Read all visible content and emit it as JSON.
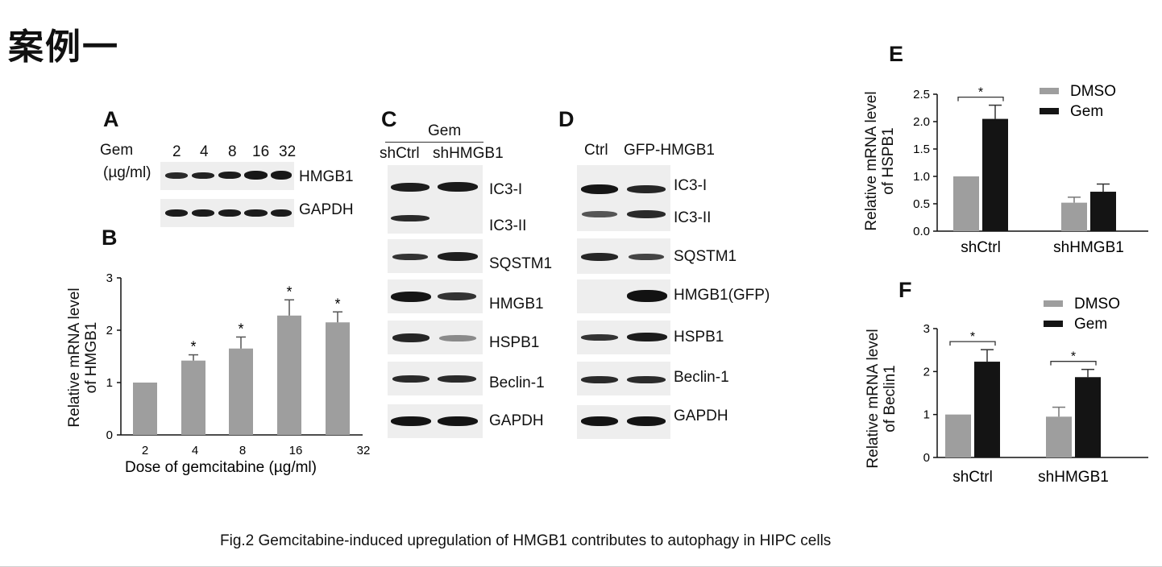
{
  "page": {
    "heading": "案例一",
    "caption": "Fig.2 Gemcitabine-induced upregulation of HMGB1 contributes to autophagy in HIPC cells"
  },
  "panel_a": {
    "letter": "A",
    "dose_label": "Gem",
    "dose_unit": "(µg/ml)",
    "doses": [
      "2",
      "4",
      "8",
      "16",
      "32"
    ],
    "rows": [
      "HMGB1",
      "GAPDH"
    ]
  },
  "panel_c": {
    "letter": "C",
    "group_label": "Gem",
    "lanes": [
      "shCtrl",
      "shHMGB1"
    ],
    "rows": [
      "IC3-I",
      "IC3-II",
      "SQSTM1",
      "HMGB1",
      "HSPB1",
      "Beclin-1",
      "GAPDH"
    ]
  },
  "panel_d": {
    "letter": "D",
    "lanes": [
      "Ctrl",
      "GFP-HMGB1"
    ],
    "rows": [
      "IC3-I",
      "IC3-II",
      "SQSTM1",
      "HMGB1(GFP)",
      "HSPB1",
      "Beclin-1",
      "GAPDH"
    ]
  },
  "colors": {
    "gray_bar": "#9e9e9e",
    "black_bar": "#141414",
    "band": "#1c1c1c"
  },
  "chart_data": [
    {
      "panel": "B",
      "type": "bar",
      "title": "",
      "xlabel": "Dose of gemcitabine (µg/ml)",
      "ylabel": "Relative mRNA level\nof HMGB1",
      "categories": [
        "2",
        "4",
        "8",
        "16",
        "32"
      ],
      "values": [
        1.0,
        1.42,
        1.65,
        2.28,
        2.15
      ],
      "errors": [
        0,
        0.11,
        0.22,
        0.3,
        0.2
      ],
      "significant": [
        false,
        true,
        true,
        true,
        true
      ],
      "sig_label": "*",
      "ylim": [
        0,
        3
      ],
      "yticks": [
        0,
        1,
        2,
        3
      ],
      "grid": false
    },
    {
      "panel": "E",
      "type": "bar",
      "title": "",
      "xlabel": "",
      "ylabel": "Relative mRNA level\nof HSPB1",
      "categories": [
        "shCtrl",
        "shHMGB1"
      ],
      "series": [
        {
          "name": "DMSO",
          "values": [
            1.0,
            0.52
          ],
          "errors": [
            0,
            0.1
          ]
        },
        {
          "name": "Gem",
          "values": [
            2.05,
            0.72
          ],
          "errors": [
            0.25,
            0.14
          ]
        }
      ],
      "significance": [
        {
          "category": "shCtrl",
          "label": "*"
        }
      ],
      "ylim": [
        0,
        2.5
      ],
      "yticks": [
        "0.0",
        "0.5",
        "1.0",
        "1.5",
        "2.0",
        "2.5"
      ],
      "legend": "top-right",
      "grid": false
    },
    {
      "panel": "F",
      "type": "bar",
      "title": "",
      "xlabel": "",
      "ylabel": "Relative mRNA level\nof Beclin1",
      "categories": [
        "shCtrl",
        "shHMGB1"
      ],
      "series": [
        {
          "name": "DMSO",
          "values": [
            1.0,
            0.95
          ],
          "errors": [
            0,
            0.22
          ]
        },
        {
          "name": "Gem",
          "values": [
            2.23,
            1.87
          ],
          "errors": [
            0.28,
            0.18
          ]
        }
      ],
      "significance": [
        {
          "category": "shCtrl",
          "label": "*"
        },
        {
          "category": "shHMGB1",
          "label": "*"
        }
      ],
      "ylim": [
        0,
        3
      ],
      "yticks": [
        "0",
        "1",
        "2",
        "3"
      ],
      "legend": "top-right",
      "grid": false
    }
  ]
}
